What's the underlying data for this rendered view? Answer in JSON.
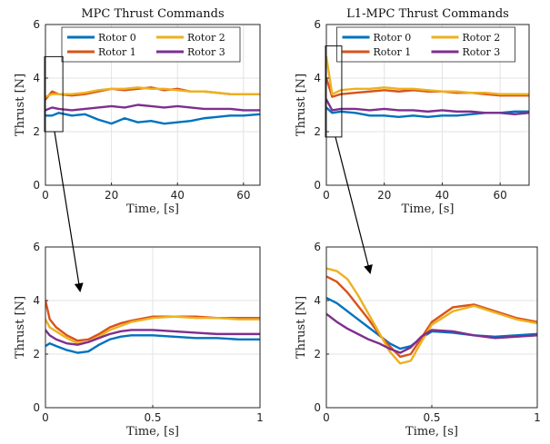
{
  "colors": {
    "rotor0": "#0072BD",
    "rotor1": "#D95319",
    "rotor2": "#EDB120",
    "rotor3": "#7E2F8E",
    "grid": "#e3e3e3",
    "axis": "#262626"
  },
  "chart_data": [
    {
      "id": "mpc-full",
      "type": "line",
      "title": "MPC Thrust Commands",
      "xlabel": "Time, [s]",
      "ylabel": "Thrust [N]",
      "xlim": [
        0,
        65
      ],
      "ylim": [
        0,
        6
      ],
      "xticks": [
        0,
        20,
        40,
        60
      ],
      "yticks": [
        0,
        2,
        4,
        6
      ],
      "grid": true,
      "legend": {
        "position": "top",
        "columns": 2,
        "entries": [
          "Rotor 0",
          "Rotor 1",
          "Rotor 2",
          "Rotor 3"
        ]
      },
      "zoom_box": {
        "x": [
          0,
          5
        ],
        "y": [
          2,
          4.8
        ]
      },
      "series": [
        {
          "name": "Rotor 0",
          "x": [
            0,
            2,
            4,
            8,
            12,
            16,
            20,
            24,
            28,
            32,
            36,
            40,
            44,
            48,
            52,
            56,
            60,
            65
          ],
          "y": [
            2.6,
            2.6,
            2.7,
            2.6,
            2.65,
            2.45,
            2.3,
            2.5,
            2.35,
            2.4,
            2.3,
            2.35,
            2.4,
            2.5,
            2.55,
            2.6,
            2.6,
            2.65
          ]
        },
        {
          "name": "Rotor 1",
          "x": [
            0,
            2,
            4,
            8,
            12,
            16,
            20,
            24,
            28,
            32,
            36,
            40,
            44,
            48,
            52,
            56,
            60,
            65
          ],
          "y": [
            3.2,
            3.5,
            3.4,
            3.35,
            3.4,
            3.5,
            3.6,
            3.55,
            3.6,
            3.65,
            3.55,
            3.6,
            3.5,
            3.5,
            3.45,
            3.4,
            3.4,
            3.4
          ]
        },
        {
          "name": "Rotor 2",
          "x": [
            0,
            2,
            4,
            8,
            12,
            16,
            20,
            24,
            28,
            32,
            36,
            40,
            44,
            48,
            52,
            56,
            60,
            65
          ],
          "y": [
            3.3,
            3.4,
            3.4,
            3.4,
            3.45,
            3.55,
            3.6,
            3.6,
            3.65,
            3.6,
            3.6,
            3.55,
            3.5,
            3.5,
            3.45,
            3.4,
            3.4,
            3.4
          ]
        },
        {
          "name": "Rotor 3",
          "x": [
            0,
            2,
            4,
            8,
            12,
            16,
            20,
            24,
            28,
            32,
            36,
            40,
            44,
            48,
            52,
            56,
            60,
            65
          ],
          "y": [
            2.8,
            2.9,
            2.85,
            2.8,
            2.85,
            2.9,
            2.95,
            2.9,
            3.0,
            2.95,
            2.9,
            2.95,
            2.9,
            2.85,
            2.85,
            2.85,
            2.8,
            2.8
          ]
        }
      ]
    },
    {
      "id": "l1mpc-full",
      "type": "line",
      "title": "L1-MPC Thrust Commands",
      "xlabel": "Time, [s]",
      "ylabel": "Thrust [N]",
      "xlim": [
        0,
        70
      ],
      "ylim": [
        0,
        6
      ],
      "xticks": [
        0,
        20,
        40,
        60
      ],
      "yticks": [
        0,
        2,
        4,
        6
      ],
      "grid": true,
      "legend": {
        "position": "top",
        "columns": 2,
        "entries": [
          "Rotor 0",
          "Rotor 1",
          "Rotor 2",
          "Rotor 3"
        ]
      },
      "zoom_box": {
        "x": [
          0,
          5
        ],
        "y": [
          1.8,
          5.2
        ]
      },
      "series": [
        {
          "name": "Rotor 0",
          "x": [
            0,
            2,
            5,
            10,
            15,
            20,
            25,
            30,
            35,
            40,
            45,
            50,
            55,
            60,
            65,
            70
          ],
          "y": [
            2.9,
            2.7,
            2.75,
            2.7,
            2.6,
            2.6,
            2.55,
            2.6,
            2.55,
            2.6,
            2.6,
            2.65,
            2.7,
            2.7,
            2.75,
            2.75
          ]
        },
        {
          "name": "Rotor 1",
          "x": [
            0,
            2,
            5,
            10,
            15,
            20,
            25,
            30,
            35,
            40,
            45,
            50,
            55,
            60,
            65,
            70
          ],
          "y": [
            4.0,
            3.3,
            3.4,
            3.45,
            3.5,
            3.55,
            3.5,
            3.55,
            3.5,
            3.5,
            3.45,
            3.45,
            3.4,
            3.35,
            3.35,
            3.35
          ]
        },
        {
          "name": "Rotor 2",
          "x": [
            0,
            2,
            5,
            10,
            15,
            20,
            25,
            30,
            35,
            40,
            45,
            50,
            55,
            60,
            65,
            70
          ],
          "y": [
            4.8,
            3.4,
            3.55,
            3.6,
            3.6,
            3.65,
            3.6,
            3.6,
            3.55,
            3.5,
            3.5,
            3.45,
            3.45,
            3.4,
            3.4,
            3.4
          ]
        },
        {
          "name": "Rotor 3",
          "x": [
            0,
            2,
            5,
            10,
            15,
            20,
            25,
            30,
            35,
            40,
            45,
            50,
            55,
            60,
            65,
            70
          ],
          "y": [
            3.2,
            2.8,
            2.85,
            2.85,
            2.8,
            2.85,
            2.8,
            2.8,
            2.75,
            2.8,
            2.75,
            2.75,
            2.7,
            2.7,
            2.65,
            2.7
          ]
        }
      ]
    },
    {
      "id": "mpc-zoom",
      "type": "line",
      "title": "",
      "xlabel": "Time, [s]",
      "ylabel": "Thrust [N]",
      "xlim": [
        0,
        1
      ],
      "ylim": [
        0,
        6
      ],
      "xticks": [
        0,
        0.5,
        1
      ],
      "yticks": [
        0,
        2,
        4,
        6
      ],
      "grid": true,
      "series": [
        {
          "name": "Rotor 0",
          "x": [
            0,
            0.02,
            0.05,
            0.1,
            0.15,
            0.2,
            0.25,
            0.3,
            0.35,
            0.4,
            0.5,
            0.6,
            0.7,
            0.8,
            0.9,
            1.0
          ],
          "y": [
            2.3,
            2.4,
            2.3,
            2.15,
            2.05,
            2.1,
            2.35,
            2.55,
            2.65,
            2.7,
            2.7,
            2.65,
            2.6,
            2.6,
            2.55,
            2.55
          ]
        },
        {
          "name": "Rotor 1",
          "x": [
            0,
            0.02,
            0.05,
            0.1,
            0.15,
            0.2,
            0.25,
            0.3,
            0.35,
            0.4,
            0.5,
            0.6,
            0.7,
            0.8,
            0.9,
            1.0
          ],
          "y": [
            4.0,
            3.3,
            3.0,
            2.7,
            2.5,
            2.55,
            2.75,
            3.0,
            3.15,
            3.25,
            3.4,
            3.4,
            3.4,
            3.35,
            3.35,
            3.35
          ]
        },
        {
          "name": "Rotor 2",
          "x": [
            0,
            0.02,
            0.05,
            0.1,
            0.15,
            0.2,
            0.25,
            0.3,
            0.35,
            0.4,
            0.5,
            0.6,
            0.7,
            0.8,
            0.9,
            1.0
          ],
          "y": [
            3.3,
            3.0,
            2.85,
            2.6,
            2.4,
            2.45,
            2.65,
            2.9,
            3.05,
            3.2,
            3.35,
            3.4,
            3.35,
            3.35,
            3.3,
            3.3
          ]
        },
        {
          "name": "Rotor 3",
          "x": [
            0,
            0.02,
            0.05,
            0.1,
            0.15,
            0.2,
            0.25,
            0.3,
            0.35,
            0.4,
            0.5,
            0.6,
            0.7,
            0.8,
            0.9,
            1.0
          ],
          "y": [
            2.9,
            2.7,
            2.55,
            2.4,
            2.35,
            2.45,
            2.6,
            2.75,
            2.85,
            2.9,
            2.9,
            2.85,
            2.8,
            2.75,
            2.75,
            2.75
          ]
        }
      ]
    },
    {
      "id": "l1mpc-zoom",
      "type": "line",
      "title": "",
      "xlabel": "Time, [s]",
      "ylabel": "Thrust [N]",
      "xlim": [
        0,
        1
      ],
      "ylim": [
        0,
        6
      ],
      "xticks": [
        0,
        0.5,
        1
      ],
      "yticks": [
        0,
        2,
        4,
        6
      ],
      "grid": true,
      "series": [
        {
          "name": "Rotor 0",
          "x": [
            0,
            0.05,
            0.1,
            0.15,
            0.2,
            0.25,
            0.3,
            0.35,
            0.4,
            0.45,
            0.5,
            0.6,
            0.7,
            0.8,
            0.9,
            1.0
          ],
          "y": [
            4.1,
            3.9,
            3.6,
            3.3,
            3.0,
            2.7,
            2.4,
            2.2,
            2.3,
            2.6,
            2.85,
            2.8,
            2.7,
            2.65,
            2.7,
            2.75
          ]
        },
        {
          "name": "Rotor 1",
          "x": [
            0,
            0.05,
            0.1,
            0.15,
            0.2,
            0.25,
            0.3,
            0.35,
            0.4,
            0.45,
            0.5,
            0.6,
            0.7,
            0.8,
            0.9,
            1.0
          ],
          "y": [
            4.9,
            4.7,
            4.3,
            3.8,
            3.3,
            2.75,
            2.3,
            1.9,
            2.0,
            2.6,
            3.2,
            3.75,
            3.85,
            3.6,
            3.35,
            3.2
          ]
        },
        {
          "name": "Rotor 2",
          "x": [
            0,
            0.05,
            0.1,
            0.15,
            0.2,
            0.25,
            0.3,
            0.35,
            0.4,
            0.45,
            0.5,
            0.6,
            0.7,
            0.8,
            0.9,
            1.0
          ],
          "y": [
            5.2,
            5.1,
            4.8,
            4.2,
            3.5,
            2.8,
            2.1,
            1.65,
            1.75,
            2.45,
            3.1,
            3.6,
            3.8,
            3.55,
            3.3,
            3.15
          ]
        },
        {
          "name": "Rotor 3",
          "x": [
            0,
            0.05,
            0.1,
            0.15,
            0.2,
            0.25,
            0.3,
            0.35,
            0.4,
            0.45,
            0.5,
            0.6,
            0.7,
            0.8,
            0.9,
            1.0
          ],
          "y": [
            3.5,
            3.2,
            2.95,
            2.75,
            2.55,
            2.4,
            2.2,
            2.05,
            2.25,
            2.65,
            2.9,
            2.85,
            2.7,
            2.6,
            2.65,
            2.7
          ]
        }
      ]
    }
  ]
}
